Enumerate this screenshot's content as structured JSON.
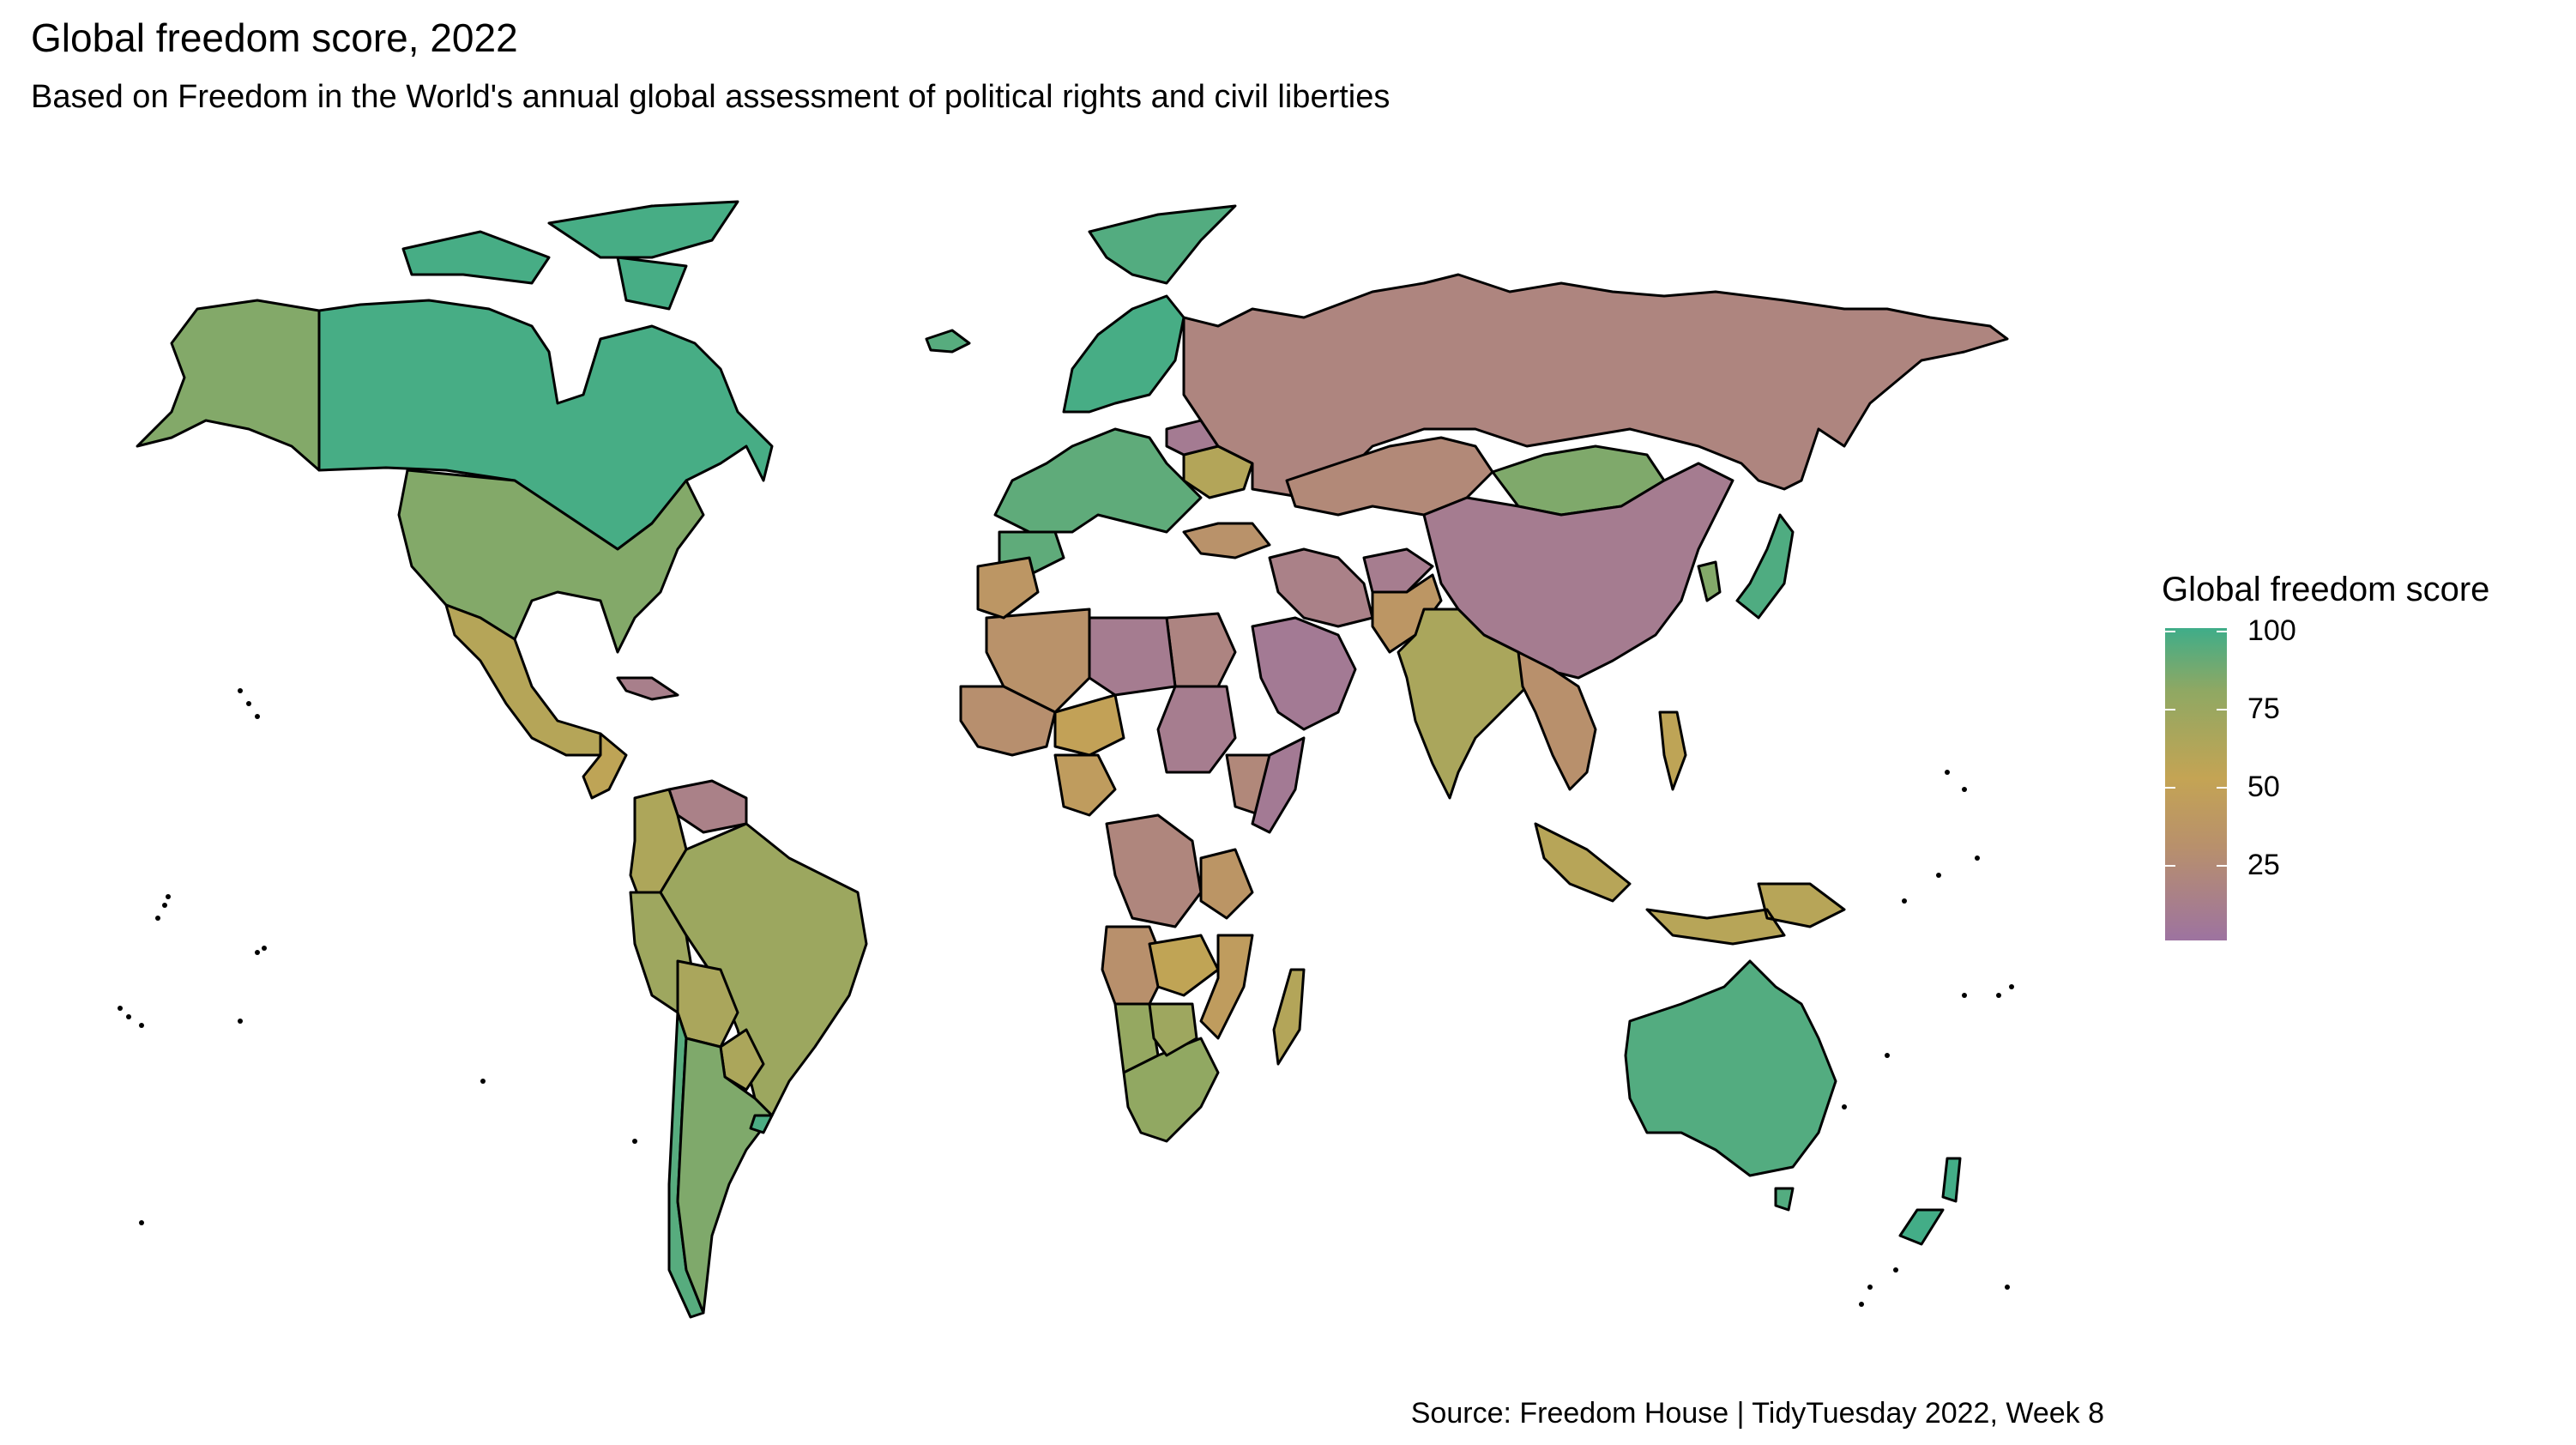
{
  "title": "Global freedom score, 2022",
  "subtitle": "Based on Freedom in the World's annual global assessment of political rights and civil liberties",
  "caption": "Source: Freedom House | TidyTuesday 2022, Week 8",
  "legend": {
    "title": "Global freedom score",
    "ticks": [
      "100",
      "75",
      "50",
      "25"
    ],
    "colors": {
      "high": "#3fad89",
      "upper": "#8fa863",
      "mid": "#c4a454",
      "lower": "#b8906c",
      "low": "#9d73a0"
    }
  },
  "regions": [
    {
      "name": "Canada",
      "score": 98
    },
    {
      "name": "Alaska (USA)",
      "score": 83
    },
    {
      "name": "United States",
      "score": 83
    },
    {
      "name": "Mexico",
      "score": 60
    },
    {
      "name": "Central America",
      "score": 55
    },
    {
      "name": "Cuba",
      "score": 12
    },
    {
      "name": "Venezuela",
      "score": 14
    },
    {
      "name": "Colombia",
      "score": 64
    },
    {
      "name": "Peru",
      "score": 72
    },
    {
      "name": "Brazil",
      "score": 73
    },
    {
      "name": "Bolivia",
      "score": 66
    },
    {
      "name": "Paraguay",
      "score": 65
    },
    {
      "name": "Chile",
      "score": 94
    },
    {
      "name": "Argentina",
      "score": 84
    },
    {
      "name": "Uruguay",
      "score": 97
    },
    {
      "name": "Greenland",
      "score": 95
    },
    {
      "name": "Iceland",
      "score": 94
    },
    {
      "name": "Western Europe",
      "score": 92
    },
    {
      "name": "Scandinavia",
      "score": 98
    },
    {
      "name": "Ukraine",
      "score": 61
    },
    {
      "name": "Belarus",
      "score": 8
    },
    {
      "name": "Turkey",
      "score": 32
    },
    {
      "name": "Russia",
      "score": 19
    },
    {
      "name": "Kazakhstan",
      "score": 23
    },
    {
      "name": "Mongolia",
      "score": 84
    },
    {
      "name": "China",
      "score": 9
    },
    {
      "name": "Iran",
      "score": 14
    },
    {
      "name": "Afghanistan",
      "score": 10
    },
    {
      "name": "Pakistan",
      "score": 37
    },
    {
      "name": "India",
      "score": 66
    },
    {
      "name": "Saudi Arabia",
      "score": 7
    },
    {
      "name": "Egypt",
      "score": 18
    },
    {
      "name": "Libya",
      "score": 9
    },
    {
      "name": "Algeria",
      "score": 32
    },
    {
      "name": "Morocco",
      "score": 37
    },
    {
      "name": "Mali",
      "score": 29
    },
    {
      "name": "Niger",
      "score": 49
    },
    {
      "name": "Nigeria",
      "score": 43
    },
    {
      "name": "Sudan",
      "score": 10
    },
    {
      "name": "Ethiopia",
      "score": 22
    },
    {
      "name": "Somalia",
      "score": 7
    },
    {
      "name": "DR Congo",
      "score": 20
    },
    {
      "name": "Angola",
      "score": 30
    },
    {
      "name": "Tanzania",
      "score": 36
    },
    {
      "name": "Zambia",
      "score": 54
    },
    {
      "name": "Mozambique",
      "score": 43
    },
    {
      "name": "Madagascar",
      "score": 61
    },
    {
      "name": "Namibia",
      "score": 77
    },
    {
      "name": "South Africa",
      "score": 79
    },
    {
      "name": "Botswana",
      "score": 72
    },
    {
      "name": "Southeast Asia",
      "score": 30
    },
    {
      "name": "Indonesia",
      "score": 59
    },
    {
      "name": "Philippines",
      "score": 55
    },
    {
      "name": "Japan",
      "score": 96
    },
    {
      "name": "South Korea",
      "score": 83
    },
    {
      "name": "Australia",
      "score": 95
    },
    {
      "name": "New Zealand",
      "score": 99
    }
  ]
}
